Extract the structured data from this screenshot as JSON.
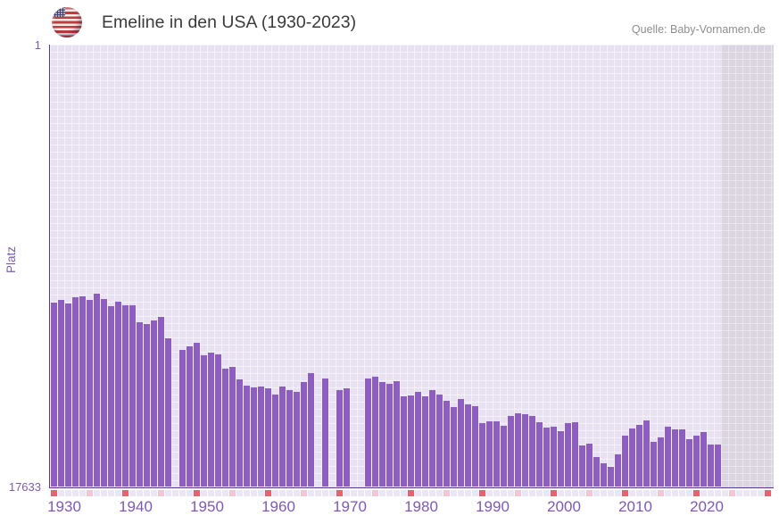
{
  "header": {
    "title": "Emeline in den USA (1930-2023)",
    "source": "Quelle: Baby-Vornamen.de",
    "flag_icon": "us-flag-icon"
  },
  "axes": {
    "y_label": "Platz",
    "y_top_tick": "1",
    "y_bottom_tick": "17633",
    "x_ticks": [
      "1930",
      "1940",
      "1950",
      "1960",
      "1970",
      "1980",
      "1990",
      "2000",
      "2010",
      "2020"
    ]
  },
  "colors": {
    "bar": "#8d5cc5",
    "axis_line": "#56398f",
    "grid_cell": "#e8e1f1",
    "grid_gutter": "#f6f2fa",
    "future_cell": "#dbd5e2",
    "future_gutter": "#eae6ee",
    "tick_decade": "#e4636e",
    "tick_halfdecade": "#f3c6d2",
    "tick_plain": "#ece5f3",
    "label_purple": "#7d58c1",
    "title_text": "#3b3b3b",
    "source_text": "#8e8e8e"
  },
  "chart_data": {
    "type": "bar",
    "title": "Emeline in den USA (1930-2023)",
    "xlabel": "",
    "ylabel": "Platz",
    "legend": null,
    "grid": true,
    "y_scale": "log",
    "y_inverted": true,
    "ylim": [
      1,
      17633
    ],
    "x_range": [
      1930,
      2023
    ],
    "future_band_years": [
      2024,
      2030
    ],
    "missing_years": [
      1947,
      1967,
      1969,
      1972,
      1973
    ],
    "categories": [
      1930,
      1931,
      1932,
      1933,
      1934,
      1935,
      1936,
      1937,
      1938,
      1939,
      1940,
      1941,
      1942,
      1943,
      1944,
      1945,
      1946,
      1947,
      1948,
      1949,
      1950,
      1951,
      1952,
      1953,
      1954,
      1955,
      1956,
      1957,
      1958,
      1959,
      1960,
      1961,
      1962,
      1963,
      1964,
      1965,
      1966,
      1967,
      1968,
      1969,
      1970,
      1971,
      1972,
      1973,
      1974,
      1975,
      1976,
      1977,
      1978,
      1979,
      1980,
      1981,
      1982,
      1983,
      1984,
      1985,
      1986,
      1987,
      1988,
      1989,
      1990,
      1991,
      1992,
      1993,
      1994,
      1995,
      1996,
      1997,
      1998,
      1999,
      2000,
      2001,
      2002,
      2003,
      2004,
      2005,
      2006,
      2007,
      2008,
      2009,
      2010,
      2011,
      2012,
      2013,
      2014,
      2015,
      2016,
      2017,
      2018,
      2019,
      2020,
      2021,
      2022,
      2023
    ],
    "values": [
      300,
      285,
      307,
      266,
      261,
      284,
      246,
      278,
      326,
      295,
      320,
      320,
      463,
      484,
      445,
      414,
      664,
      null,
      854,
      789,
      723,
      954,
      911,
      942,
      1282,
      1243,
      1648,
      1866,
      1941,
      1904,
      1981,
      2306,
      1931,
      2061,
      2143,
      1739,
      1427,
      null,
      1617,
      null,
      2077,
      2009,
      null,
      null,
      1594,
      1554,
      1725,
      1795,
      1705,
      2385,
      2338,
      2143,
      2399,
      2077,
      2306,
      2612,
      2999,
      2546,
      2827,
      2981,
      4339,
      4147,
      4147,
      4577,
      3706,
      3472,
      3562,
      3706,
      4229,
      4789,
      4631,
      5183,
      4339,
      4229,
      7015,
      6794,
      9066,
      10409,
      11265,
      8545,
      5644,
      4818,
      4514,
      4090,
      6480,
      5870,
      4695,
      4953,
      4983,
      6192,
      5722,
      5255,
      6973,
      6877
    ]
  }
}
